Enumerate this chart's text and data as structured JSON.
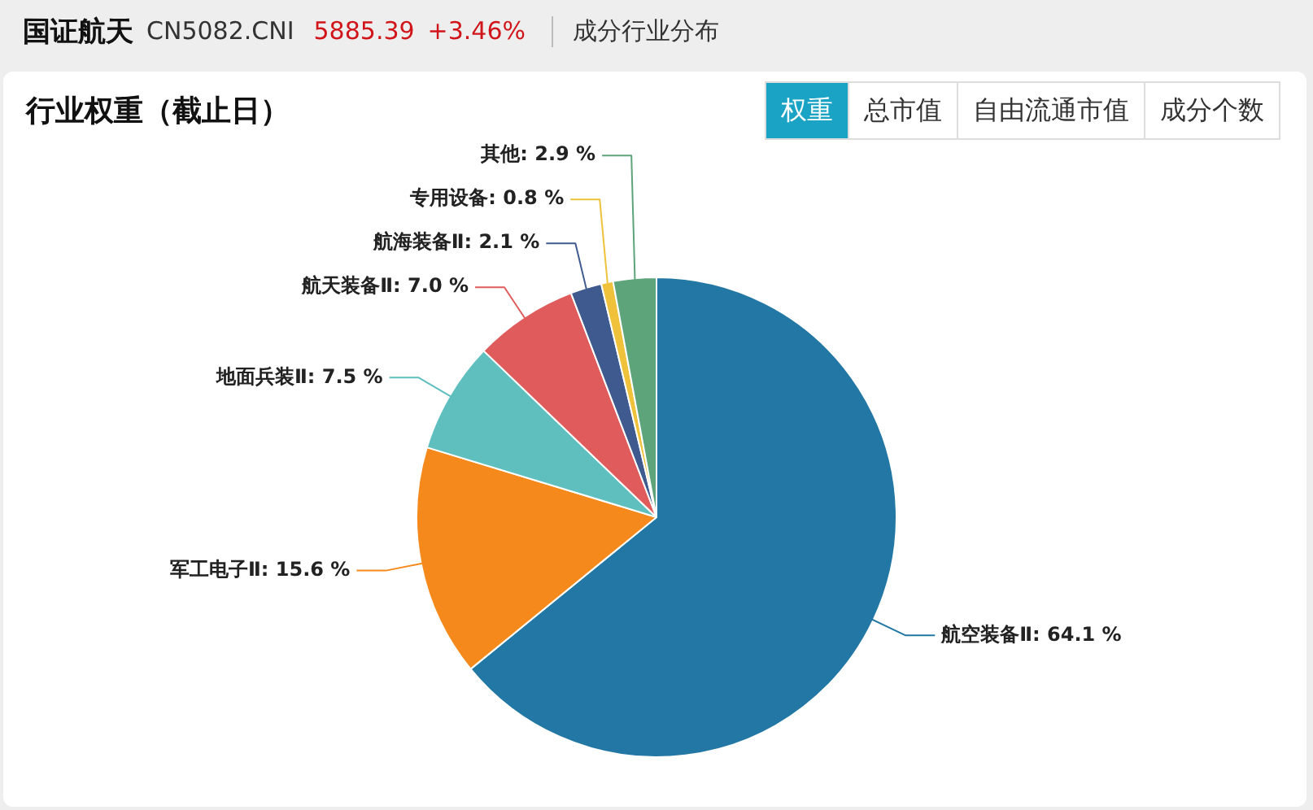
{
  "chart_data": {
    "type": "pie",
    "title": "国证航天",
    "subtitle": "行业权重（截止日）",
    "annotations": [
      "CN5082.CNI",
      "5885.39",
      "+3.46%",
      "成分行业分布",
      "权重",
      "总市值",
      "自由流通市值",
      "成分个数"
    ],
    "categories": [
      "航空装备Ⅱ",
      "军工电子Ⅱ",
      "地面兵装Ⅱ",
      "航天装备Ⅱ",
      "航海装备Ⅱ",
      "专用设备",
      "其他"
    ],
    "values": [
      64.1,
      15.6,
      7.5,
      7.0,
      2.1,
      0.8,
      2.9
    ],
    "colors": [
      "#2277a4",
      "#f5891c",
      "#5fbfbf",
      "#e05c5c",
      "#3f5a8f",
      "#f0c23c",
      "#5ea47a"
    ],
    "value_labels": [
      "64.1 %",
      "15.6 %",
      "7.5 %",
      "7.0 %",
      "2.1 %",
      "0.8 %",
      "2.9 %"
    ]
  }
}
